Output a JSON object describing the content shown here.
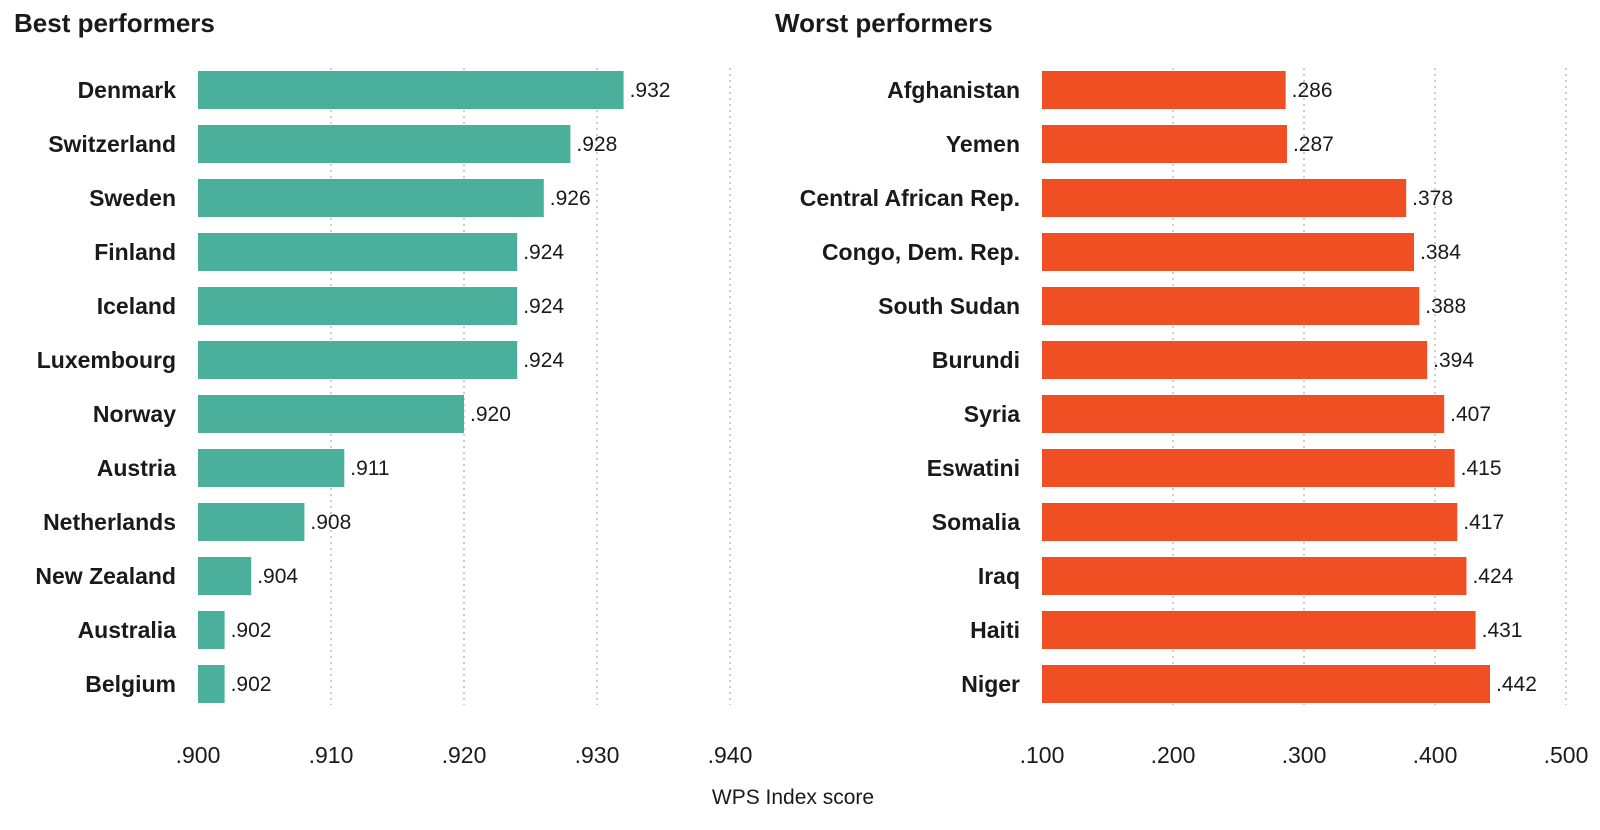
{
  "chart_data": [
    {
      "type": "bar",
      "orientation": "horizontal",
      "title": "Best performers",
      "color": "#4ab09b",
      "categories": [
        "Denmark",
        "Switzerland",
        "Sweden",
        "Finland",
        "Iceland",
        "Luxembourg",
        "Norway",
        "Austria",
        "Netherlands",
        "New Zealand",
        "Australia",
        "Belgium"
      ],
      "values": [
        0.932,
        0.928,
        0.926,
        0.924,
        0.924,
        0.924,
        0.92,
        0.911,
        0.908,
        0.904,
        0.902,
        0.902
      ],
      "value_labels": [
        ".932",
        ".928",
        ".926",
        ".924",
        ".924",
        ".924",
        ".920",
        ".911",
        ".908",
        ".904",
        ".902",
        ".902"
      ],
      "xlim": [
        0.9,
        0.94
      ],
      "xticks": [
        0.9,
        0.91,
        0.92,
        0.93,
        0.94
      ],
      "xtick_labels": [
        ".900",
        ".910",
        ".920",
        ".930",
        ".940"
      ],
      "grid": true
    },
    {
      "type": "bar",
      "orientation": "horizontal",
      "title": "Worst performers",
      "color": "#f04e23",
      "categories": [
        "Afghanistan",
        "Yemen",
        "Central African Rep.",
        "Congo, Dem. Rep.",
        "South Sudan",
        "Burundi",
        "Syria",
        "Eswatini",
        "Somalia",
        "Iraq",
        "Haiti",
        "Niger"
      ],
      "values": [
        0.286,
        0.287,
        0.378,
        0.384,
        0.388,
        0.394,
        0.407,
        0.415,
        0.417,
        0.424,
        0.431,
        0.442
      ],
      "value_labels": [
        ".286",
        ".287",
        ".378",
        ".384",
        ".388",
        ".394",
        ".407",
        ".415",
        ".417",
        ".424",
        ".431",
        ".442"
      ],
      "xlim": [
        0.1,
        0.5
      ],
      "xticks": [
        0.1,
        0.2,
        0.3,
        0.4,
        0.5
      ],
      "xtick_labels": [
        ".100",
        ".200",
        ".300",
        ".400",
        ".500"
      ],
      "grid": true
    }
  ],
  "xlabel": "WPS Index score"
}
